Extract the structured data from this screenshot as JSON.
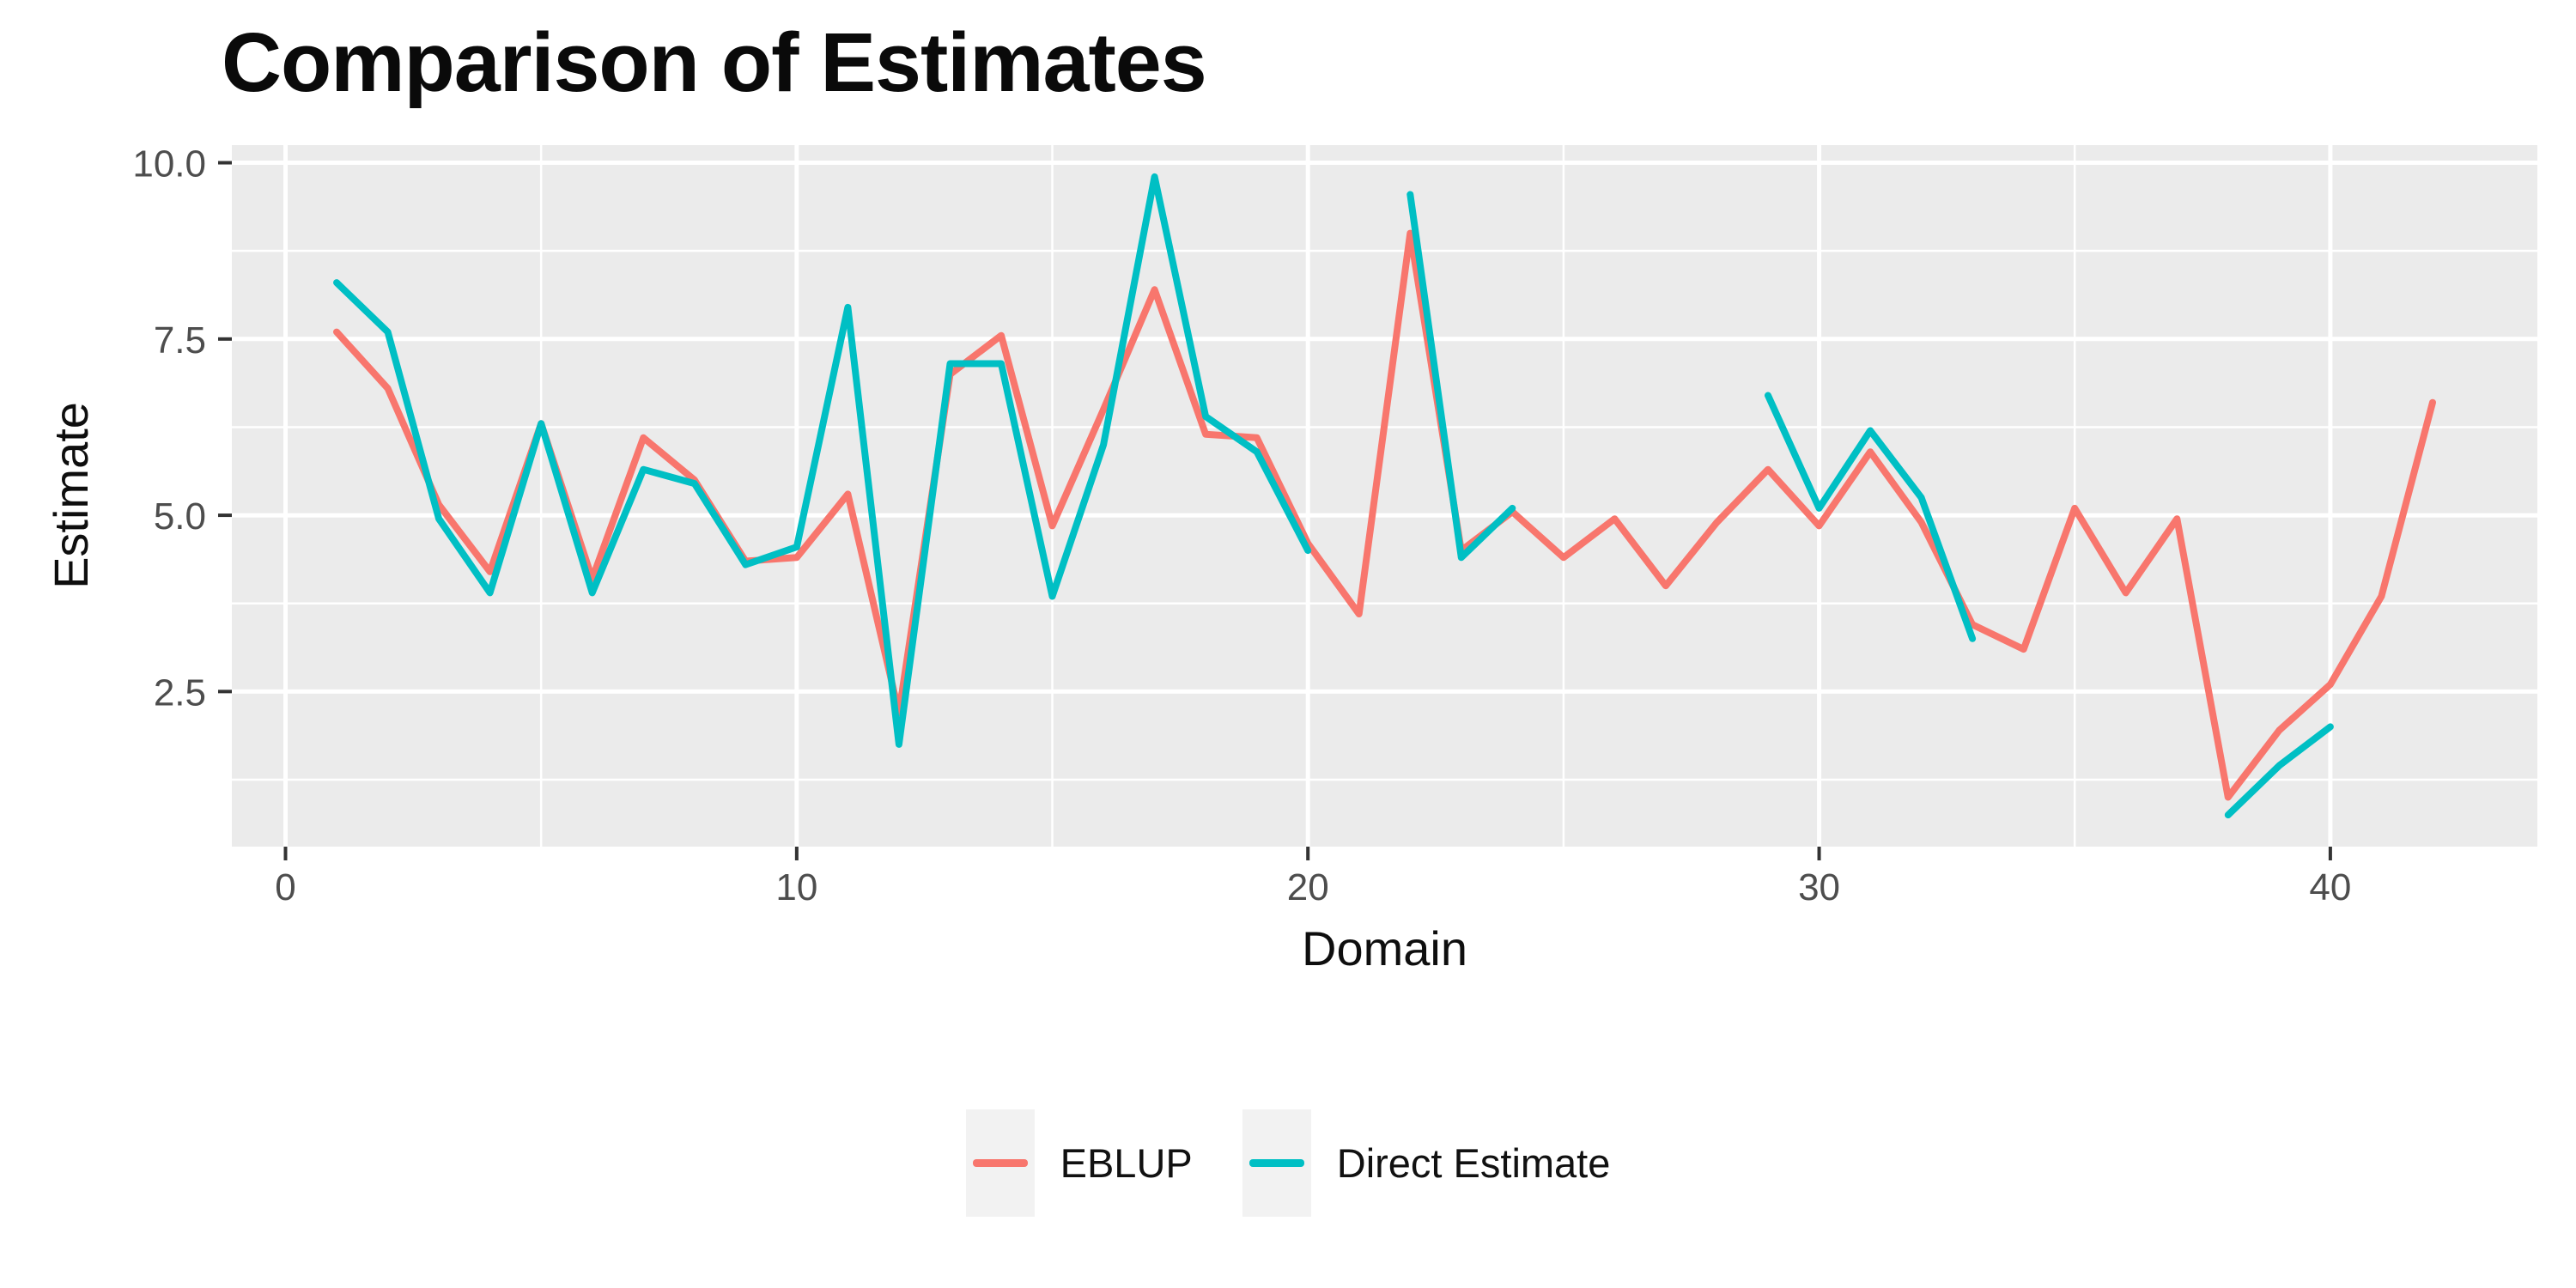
{
  "title": "Comparison of Estimates",
  "chart_data": {
    "type": "line",
    "title": "Comparison of Estimates",
    "xlabel": "Domain",
    "ylabel": "Estimate",
    "x": [
      1,
      2,
      3,
      4,
      5,
      6,
      7,
      8,
      9,
      10,
      11,
      12,
      13,
      14,
      15,
      16,
      17,
      18,
      19,
      20,
      21,
      22,
      23,
      24,
      25,
      26,
      27,
      28,
      29,
      30,
      31,
      32,
      33,
      34,
      35,
      36,
      37,
      38,
      39,
      40,
      41,
      42
    ],
    "series": [
      {
        "name": "EBLUP",
        "color": "#F8766D",
        "values": [
          7.6,
          6.8,
          5.15,
          4.2,
          6.3,
          4.1,
          6.1,
          5.5,
          4.35,
          4.4,
          5.3,
          2.2,
          7.0,
          7.55,
          4.85,
          6.5,
          8.2,
          6.15,
          6.1,
          4.6,
          3.6,
          9.0,
          4.5,
          5.05,
          4.4,
          4.95,
          4.0,
          4.9,
          5.65,
          4.85,
          5.9,
          4.9,
          3.45,
          3.1,
          5.1,
          3.9,
          4.95,
          1.0,
          1.95,
          2.6,
          3.85,
          6.6
        ]
      },
      {
        "name": "Direct Estimate",
        "color": "#00BFC4",
        "values": [
          8.3,
          7.6,
          4.95,
          3.9,
          6.3,
          3.9,
          5.65,
          5.45,
          4.3,
          4.55,
          7.95,
          1.75,
          7.15,
          7.15,
          3.85,
          6.0,
          9.8,
          6.4,
          5.9,
          4.5,
          null,
          9.55,
          4.4,
          5.1,
          null,
          null,
          null,
          null,
          6.7,
          5.1,
          6.2,
          5.25,
          3.25,
          null,
          null,
          null,
          null,
          0.75,
          1.45,
          2.0,
          null,
          null
        ]
      }
    ],
    "xlim": [
      -1.05,
      44.05
    ],
    "ylim": [
      0.3,
      10.25
    ],
    "x_ticks": [
      0,
      10,
      20,
      30,
      40
    ],
    "x_tick_labels": [
      "0",
      "10",
      "20",
      "30",
      "40"
    ],
    "y_ticks": [
      2.5,
      5.0,
      7.5,
      10.0
    ],
    "y_tick_labels": [
      "2.5",
      "5.0",
      "7.5",
      "10.0"
    ],
    "x_minor_gridlines": [
      5,
      15,
      25,
      35
    ],
    "y_minor_gridlines": [
      1.25,
      3.75,
      6.25,
      8.75
    ],
    "grid": true,
    "legend_position": "bottom",
    "panel_background": "#EBEBEB",
    "gridline_color": "#FFFFFF",
    "tick_color": "#333333",
    "tick_label_color": "#4d4d4d",
    "legend_key_background": "#F2F2F2",
    "line_width": 8
  }
}
